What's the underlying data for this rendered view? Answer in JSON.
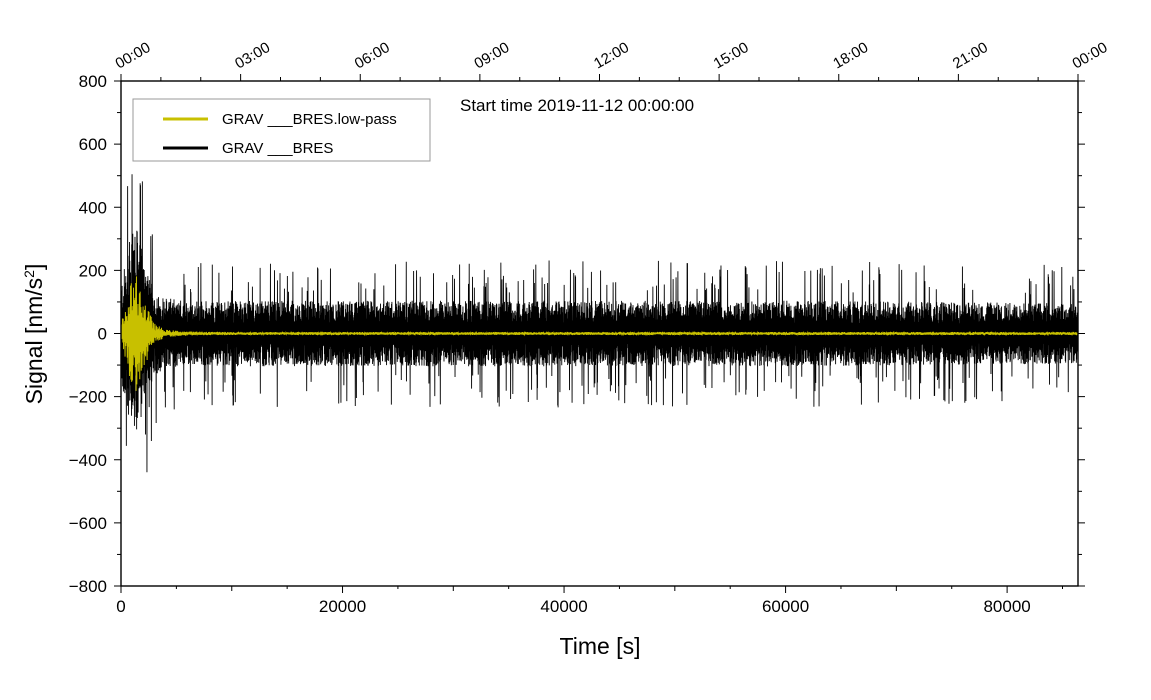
{
  "chart_data": {
    "type": "line",
    "title": "Start time 2019-11-12 00:00:00",
    "xlabel": "Time [s]",
    "ylabel": "Signal [nm/s²]",
    "xlim": [
      0,
      86400
    ],
    "ylim": [
      -800,
      800
    ],
    "x_ticks": [
      "0",
      "20000",
      "40000",
      "60000",
      "80000"
    ],
    "x_tick_values": [
      0,
      20000,
      40000,
      60000,
      80000
    ],
    "y_ticks": [
      "800",
      "600",
      "400",
      "200",
      "0",
      "−200",
      "−400",
      "−600",
      "−800"
    ],
    "y_tick_values": [
      800,
      600,
      400,
      200,
      0,
      -200,
      -400,
      -600,
      -800
    ],
    "top_axis_ticks": [
      "00:00",
      "03:00",
      "06:00",
      "09:00",
      "12:00",
      "15:00",
      "18:00",
      "21:00",
      "00:00"
    ],
    "grid": false,
    "legend_position": "top-left",
    "series": [
      {
        "name": "GRAV ___BRES.low-pass",
        "color": "#c8c000",
        "description_values": {
          "x": [
            0,
            500,
            1000,
            1500,
            2000,
            2500,
            3000,
            4000,
            6000,
            10000,
            20000,
            40000,
            60000,
            86400
          ],
          "envelope": [
            40,
            120,
            220,
            230,
            150,
            90,
            40,
            15,
            8,
            6,
            6,
            6,
            6,
            6
          ]
        }
      },
      {
        "name": "GRAV ___BRES",
        "color": "#000000",
        "description_values": {
          "x": [
            0,
            500,
            1000,
            1500,
            2000,
            2500,
            3000,
            4000,
            6000,
            10000,
            20000,
            40000,
            60000,
            86400
          ],
          "envelope": [
            200,
            300,
            420,
            410,
            300,
            220,
            170,
            140,
            130,
            130,
            130,
            130,
            130,
            120
          ]
        }
      }
    ]
  }
}
